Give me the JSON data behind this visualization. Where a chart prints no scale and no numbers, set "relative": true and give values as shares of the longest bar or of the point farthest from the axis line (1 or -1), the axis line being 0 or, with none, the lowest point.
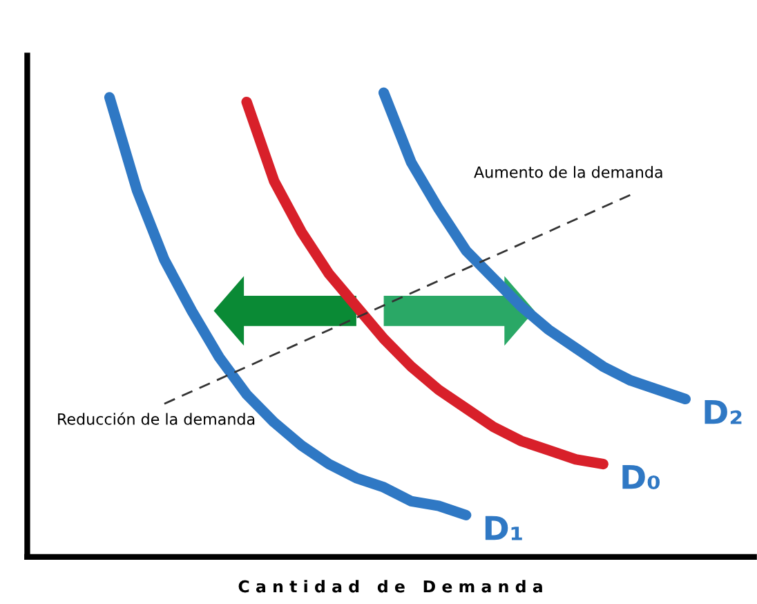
{
  "chart_data": {
    "type": "line",
    "relative": true,
    "xlabel": "C a n t i d a d   d e   D e m a n d a",
    "legend": false,
    "marker": "none",
    "categories": [
      null,
      null,
      null,
      null,
      null,
      null,
      null,
      null,
      null,
      null,
      null,
      null,
      null,
      null,
      null,
      null,
      null,
      null,
      null,
      null,
      null,
      null,
      null,
      null,
      null,
      null,
      null
    ],
    "series": [
      {
        "name": "D₁",
        "color": "#2f78c4",
        "values": [
          null,
          null,
          null,
          0.99,
          0.79,
          0.64,
          0.53,
          0.43,
          0.35,
          0.29,
          0.24,
          0.2,
          0.17,
          0.15,
          0.12,
          0.11,
          0.09,
          null,
          null,
          null,
          null,
          null,
          null,
          null,
          null,
          null,
          null
        ]
      },
      {
        "name": "D₀",
        "color": "#d8202a",
        "values": [
          null,
          null,
          null,
          null,
          null,
          null,
          null,
          null,
          0.98,
          0.81,
          0.7,
          0.61,
          0.54,
          0.47,
          0.41,
          0.36,
          0.32,
          0.28,
          0.25,
          0.23,
          0.21,
          0.2,
          null,
          null,
          null,
          null,
          null
        ]
      },
      {
        "name": "D₂",
        "color": "#2f78c4",
        "values": [
          null,
          null,
          null,
          null,
          null,
          null,
          null,
          null,
          null,
          null,
          null,
          null,
          null,
          1.0,
          0.85,
          0.75,
          0.66,
          0.6,
          0.54,
          0.49,
          0.45,
          0.41,
          0.38,
          0.36,
          0.34,
          null,
          null
        ]
      },
      {
        "color": "#333333",
        "line_style": "dashed",
        "values": [
          null,
          null,
          null,
          null,
          null,
          0.33,
          null,
          null,
          null,
          null,
          null,
          null,
          null,
          null,
          null,
          null,
          null,
          null,
          null,
          null,
          null,
          null,
          0.78,
          null,
          null,
          null,
          null
        ]
      }
    ],
    "annotations": [
      "Aumento de la demanda",
      "Reducción de la demanda"
    ]
  }
}
